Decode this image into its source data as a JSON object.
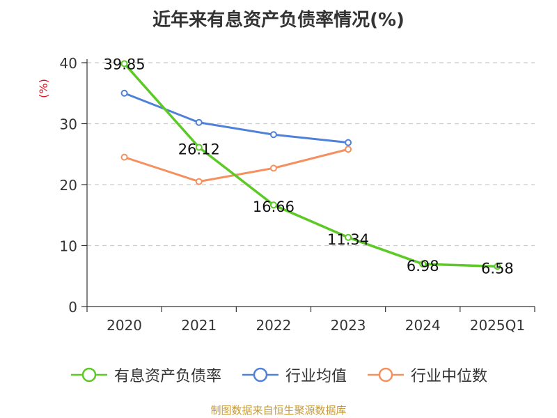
{
  "title": "近年来有息资产负债率情况(%)",
  "source": "制图数据来自恒生聚源数据库",
  "chart_data": {
    "type": "line",
    "categories": [
      "2020",
      "2021",
      "2022",
      "2023",
      "2024",
      "2025Q1"
    ],
    "ylabel": "(%)",
    "ylim": [
      0,
      40
    ],
    "yticks": [
      0,
      10,
      20,
      30,
      40
    ],
    "grid": true,
    "legend_position": "bottom",
    "series": [
      {
        "name": "有息资产负债率",
        "color": "#5cc926",
        "values": [
          39.85,
          26.12,
          16.66,
          11.34,
          6.98,
          6.58
        ],
        "labels": [
          "39.85",
          "26.12",
          "16.66",
          "11.34",
          "6.98",
          "6.58"
        ]
      },
      {
        "name": "行业均值",
        "color": "#4f81d9",
        "values": [
          35.0,
          30.2,
          28.2,
          26.9,
          null,
          null
        ]
      },
      {
        "name": "行业中位数",
        "color": "#f5905f",
        "values": [
          24.5,
          20.5,
          22.7,
          25.8,
          null,
          null
        ]
      }
    ]
  }
}
